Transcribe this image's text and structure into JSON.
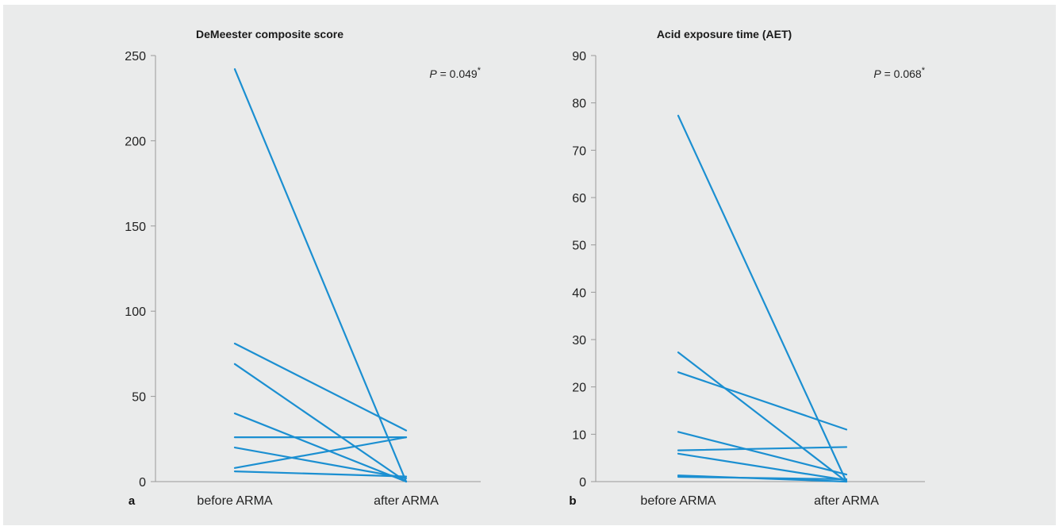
{
  "chart_data": [
    {
      "type": "line",
      "panel_label": "a",
      "title": "DeMeester composite score",
      "categories": [
        "before ARMA",
        "after ARMA"
      ],
      "ylim": [
        0,
        250
      ],
      "yticks": [
        0,
        50,
        100,
        150,
        200,
        250
      ],
      "p_prefix": "P",
      "p_value": " = 0.049",
      "p_mark": "*",
      "series": [
        {
          "values": [
            242,
            0
          ]
        },
        {
          "values": [
            81,
            30
          ]
        },
        {
          "values": [
            69,
            0
          ]
        },
        {
          "values": [
            40,
            0
          ]
        },
        {
          "values": [
            26,
            26
          ]
        },
        {
          "values": [
            20,
            2
          ]
        },
        {
          "values": [
            8,
            26
          ]
        },
        {
          "values": [
            6,
            3
          ]
        }
      ],
      "line_color": "#1b8fd1",
      "grid": false
    },
    {
      "type": "line",
      "panel_label": "b",
      "title": "Acid exposure time (AET)",
      "categories": [
        "before ARMA",
        "after ARMA"
      ],
      "ylim": [
        0,
        90
      ],
      "yticks": [
        0,
        10,
        20,
        30,
        40,
        50,
        60,
        70,
        80,
        90
      ],
      "p_prefix": "P",
      "p_value": " = 0.068",
      "p_mark": "*",
      "series": [
        {
          "values": [
            77.3,
            0
          ]
        },
        {
          "values": [
            27.3,
            0
          ]
        },
        {
          "values": [
            23.1,
            11
          ]
        },
        {
          "values": [
            10.5,
            1.5
          ]
        },
        {
          "values": [
            6.6,
            7.3
          ]
        },
        {
          "values": [
            5.9,
            0.3
          ]
        },
        {
          "values": [
            1.3,
            0
          ]
        },
        {
          "values": [
            1.0,
            0.5
          ]
        }
      ],
      "line_color": "#1b8fd1",
      "grid": false
    }
  ]
}
